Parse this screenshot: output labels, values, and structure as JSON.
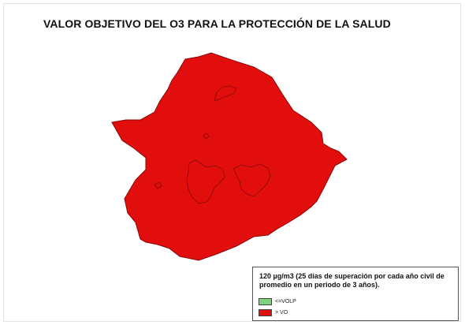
{
  "map": {
    "title": "VALOR OBJETIVO DEL O3 PARA LA PROTECCIÓN DE LA SALUD",
    "region_fill": "#e20d0d",
    "border_color": "#8a0909"
  },
  "legend": {
    "title": "120 µg/m3 (25 días de superación por cada año civil de promedio en un periodo de 3 años).",
    "items": [
      {
        "label": "<=VOLP",
        "color": "#7fd27f"
      },
      {
        "label": "> VO",
        "color": "#e20d0d"
      }
    ]
  }
}
